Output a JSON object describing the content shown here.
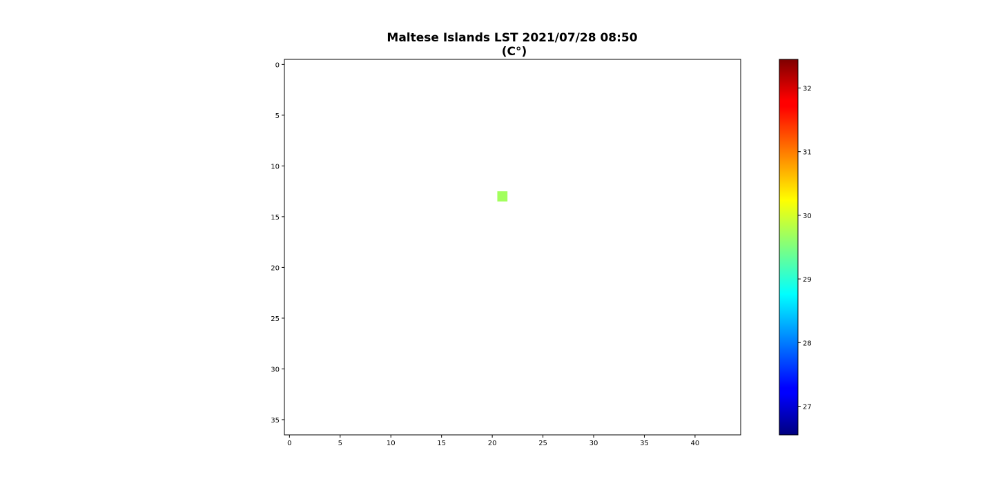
{
  "chart_data": {
    "type": "heatmap",
    "title_lines": [
      "Maltese Islands LST 2021/07/28 08:50",
      "(C°)"
    ],
    "grid": false,
    "image_shape": {
      "rows": 37,
      "cols": 45
    },
    "xlim": [
      -0.5,
      44.5
    ],
    "ylim": [
      36.5,
      -0.5
    ],
    "x_ticks": [
      0,
      5,
      10,
      15,
      20,
      25,
      30,
      35,
      40
    ],
    "y_ticks": [
      0,
      5,
      10,
      15,
      20,
      25,
      30,
      35
    ],
    "cells": [
      {
        "row": 13,
        "col": 21,
        "value": 29.7
      }
    ],
    "colorbar": {
      "colormap": "jet",
      "range": [
        26.55,
        32.45
      ],
      "ticks": [
        27,
        28,
        29,
        30,
        31,
        32
      ],
      "placement": "right"
    },
    "nodata_color": "#ffffff"
  }
}
